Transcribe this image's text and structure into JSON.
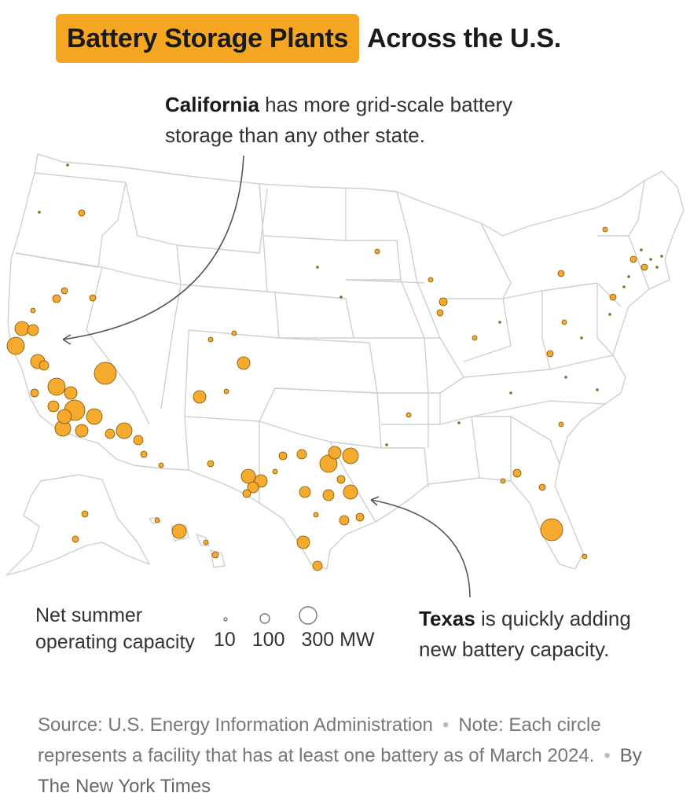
{
  "title": {
    "highlight": "Battery Storage Plants",
    "rest": "Across the U.S."
  },
  "annotations": {
    "california_bold": "California",
    "california_text": " has more grid-scale battery storage than any other state.",
    "texas_bold": "Texas",
    "texas_text": " is quickly adding new battery capacity."
  },
  "legend": {
    "label": "Net summer operating capacity",
    "values": [
      "10",
      "100",
      "300 MW"
    ]
  },
  "footer": {
    "source": "Source: U.S. Energy Information Administration",
    "note": "Note: Each circle represents a facility that has at least one battery as of March 2024.",
    "credit": "By The New York Times"
  },
  "colors": {
    "marker_fill": "#f5a623",
    "marker_stroke": "#7a5200",
    "state_border": "#cfcfcf",
    "highlight": "#f5a623"
  }
}
